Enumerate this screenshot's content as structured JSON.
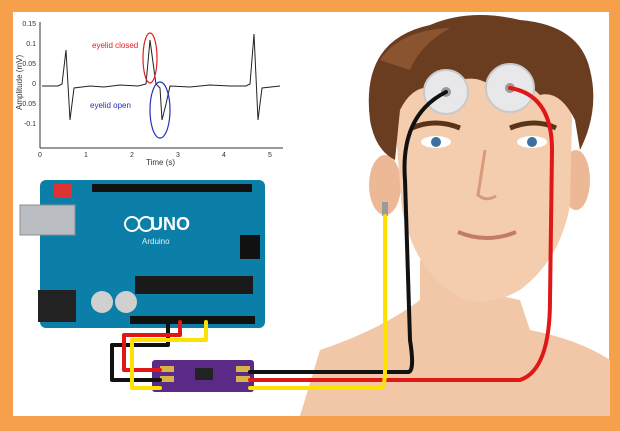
{
  "colors": {
    "border": "#f7a04b",
    "arduino": "#0b7fa8",
    "wire_red": "#e01717",
    "wire_black": "#111111",
    "wire_yellow": "#ffe100",
    "sensor_board": "#5b2a86",
    "skin": "#f1c7a8",
    "hair": "#6a3d21"
  },
  "chart": {
    "ylabel": "Amplitude (mV)",
    "xlabel": "Time (s)",
    "y_ticks": [
      "0.15",
      "0.1",
      "0.05",
      "0",
      "-0.05",
      "-0.1"
    ],
    "x_ticks": [
      "0",
      "1",
      "2",
      "3",
      "4",
      "5"
    ],
    "annotation_closed": "eyelid closed",
    "annotation_open": "eyelid open"
  },
  "arduino": {
    "brand": "UNO",
    "sub": "Arduino"
  }
}
